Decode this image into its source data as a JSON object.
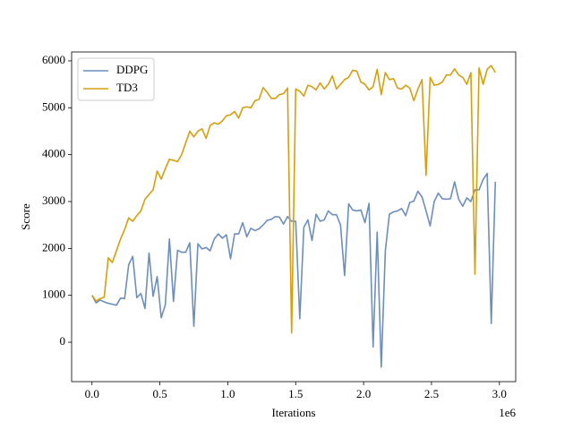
{
  "chart_data": {
    "type": "line",
    "xlabel": "Iterations",
    "ylabel": "Score",
    "x_offset_label": "1e6",
    "x": [
      0,
      0.03,
      0.06,
      0.09,
      0.12,
      0.15,
      0.18,
      0.21,
      0.24,
      0.27,
      0.3,
      0.33,
      0.36,
      0.39,
      0.42,
      0.45,
      0.48,
      0.51,
      0.54,
      0.57,
      0.6,
      0.63,
      0.66,
      0.69,
      0.72,
      0.75,
      0.78,
      0.81,
      0.84,
      0.87,
      0.9,
      0.93,
      0.96,
      0.99,
      1.02,
      1.05,
      1.08,
      1.11,
      1.14,
      1.17,
      1.2,
      1.23,
      1.26,
      1.29,
      1.32,
      1.35,
      1.38,
      1.41,
      1.44,
      1.47,
      1.5,
      1.53,
      1.56,
      1.59,
      1.62,
      1.65,
      1.68,
      1.71,
      1.74,
      1.77,
      1.8,
      1.83,
      1.86,
      1.89,
      1.92,
      1.95,
      1.98,
      2.01,
      2.04,
      2.07,
      2.1,
      2.13,
      2.16,
      2.19,
      2.22,
      2.25,
      2.28,
      2.31,
      2.34,
      2.37,
      2.4,
      2.43,
      2.46,
      2.49,
      2.52,
      2.55,
      2.58,
      2.61,
      2.64,
      2.67,
      2.7,
      2.73,
      2.76,
      2.79,
      2.82,
      2.85,
      2.88,
      2.91,
      2.94,
      2.97
    ],
    "series": [
      {
        "name": "DDPG",
        "color": "#6c8ebf",
        "values": [
          1000,
          840,
          900,
          860,
          830,
          810,
          790,
          940,
          930,
          1650,
          1830,
          950,
          1040,
          720,
          1900,
          980,
          1400,
          520,
          800,
          2200,
          870,
          1960,
          1920,
          1920,
          2120,
          340,
          2100,
          1990,
          2020,
          1950,
          2200,
          2310,
          2220,
          2290,
          1780,
          2310,
          2310,
          2550,
          2250,
          2430,
          2380,
          2420,
          2500,
          2600,
          2620,
          2680,
          2670,
          2520,
          2680,
          2580,
          2580,
          500,
          2450,
          2610,
          2170,
          2730,
          2580,
          2610,
          2800,
          2720,
          2720,
          2500,
          1420,
          2950,
          2820,
          2800,
          2820,
          2550,
          2960,
          -100,
          2350,
          -530,
          1950,
          2730,
          2780,
          2800,
          2850,
          2700,
          2980,
          3010,
          3220,
          3100,
          2800,
          2480,
          3000,
          3180,
          3060,
          3050,
          3060,
          3420,
          3050,
          2900,
          3080,
          3000,
          3250,
          3250,
          3470,
          3600,
          400,
          3420
        ]
      },
      {
        "name": "TD3",
        "color": "#d69f0e",
        "values": [
          1000,
          880,
          930,
          960,
          1800,
          1700,
          1950,
          2200,
          2400,
          2650,
          2580,
          2700,
          2800,
          3050,
          3150,
          3250,
          3650,
          3480,
          3700,
          3900,
          3880,
          3850,
          4000,
          4250,
          4500,
          4380,
          4500,
          4550,
          4350,
          4620,
          4680,
          4650,
          4720,
          4830,
          4850,
          4920,
          4780,
          5000,
          5020,
          5000,
          5150,
          5180,
          5430,
          5330,
          5200,
          5200,
          5280,
          5300,
          5420,
          200,
          5400,
          5350,
          5250,
          5480,
          5450,
          5380,
          5530,
          5400,
          5500,
          5680,
          5400,
          5500,
          5600,
          5650,
          5800,
          5780,
          5550,
          5500,
          5380,
          5450,
          5820,
          5280,
          5750,
          5600,
          5620,
          5420,
          5400,
          5480,
          5420,
          5150,
          5400,
          5600,
          3560,
          5650,
          5480,
          5500,
          5550,
          5700,
          5700,
          5830,
          5700,
          5650,
          5500,
          5750,
          1450,
          5850,
          5500,
          5820,
          5900,
          5750
        ]
      }
    ],
    "xlim": [
      -0.15,
      3.12
    ],
    "ylim": [
      -840,
      6190
    ],
    "xticks": [
      {
        "value": 0,
        "label": "0.0"
      },
      {
        "value": 0.5,
        "label": "0.5"
      },
      {
        "value": 1,
        "label": "1.0"
      },
      {
        "value": 1.5,
        "label": "1.5"
      },
      {
        "value": 2,
        "label": "2.0"
      },
      {
        "value": 2.5,
        "label": "2.5"
      },
      {
        "value": 3,
        "label": "3.0"
      }
    ],
    "yticks": [
      0,
      1000,
      2000,
      3000,
      4000,
      5000,
      6000
    ],
    "legend": "upper left",
    "grid": false
  }
}
